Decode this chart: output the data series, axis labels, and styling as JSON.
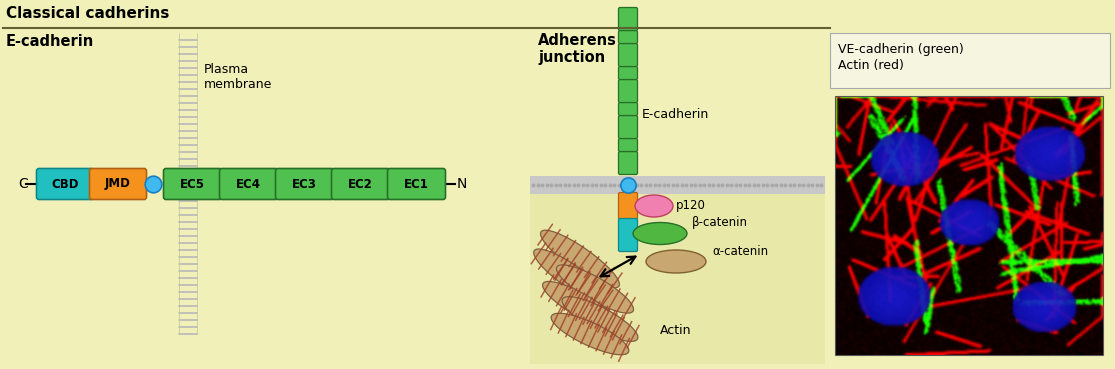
{
  "bg_color": "#f0f0b0",
  "bg_left_color": "#f4f4c8",
  "intracell_color": "#e0e0a0",
  "title": "Classical cadherins",
  "left_label": "E-cadherin",
  "adherens_label_line1": "Adherens",
  "adherens_label_line2": "junction",
  "plasma_membrane_label": "Plasma\nmembrane",
  "ve_legend_text1": "VE-cadherin (green)",
  "ve_legend_text2": "Actin (red)",
  "ec_domains": [
    "EC5",
    "EC4",
    "EC3",
    "EC2",
    "EC1"
  ],
  "cbd_color": "#20c0c0",
  "jmd_color": "#f5921e",
  "ec_color": "#50c050",
  "dot_color": "#40b8f0",
  "p120_color": "#f080b0",
  "beta_catenin_color": "#50b840",
  "alpha_catenin_color": "#c8a870",
  "actin_fill": "#c8a870",
  "actin_stripe": "#a04028",
  "membrane_color": "#c8c8c8",
  "cadherin_seg_color": "#50c050",
  "separator_color": "#808050",
  "legend_box_color": "#f0f0d8"
}
